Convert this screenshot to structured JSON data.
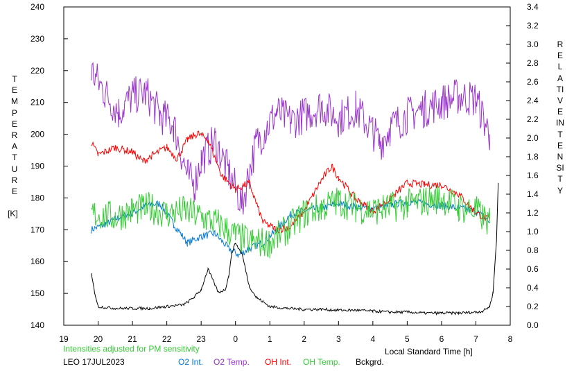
{
  "chart_data": {
    "type": "line",
    "left_axis_label": "TEMPERATURE",
    "left_axis_unit": "[K]",
    "right_axis_label": "RELATIVE INTENSITY",
    "x_label": "Local Standard Time [h]",
    "note": "Intensities adjusted for PM sensitivity",
    "station_date": "LEO 17JUL2023",
    "ylim_left": [
      140,
      240
    ],
    "ylim_right": [
      0.0,
      3.4
    ],
    "xlim": [
      19,
      32
    ],
    "y_left_ticks": [
      "240",
      "230",
      "220",
      "210",
      "200",
      "190",
      "180",
      "170",
      "160",
      "150",
      "140"
    ],
    "y_right_ticks": [
      "3.4",
      "3.2",
      "3.0",
      "2.8",
      "2.6",
      "2.4",
      "2.2",
      "2.0",
      "1.8",
      "1.6",
      "1.4",
      "1.2",
      "1.0",
      "0.8",
      "0.6",
      "0.4",
      "0.2",
      "0.0"
    ],
    "x_ticks": [
      "19",
      "20",
      "21",
      "22",
      "23",
      "0",
      "1",
      "2",
      "3",
      "4",
      "5",
      "6",
      "7",
      "8"
    ],
    "grid": false,
    "series": [
      {
        "name": "O2 Int.",
        "axis": "right",
        "color": "#0078d7",
        "noise": 0.04,
        "x": [
          19.8,
          20.2,
          20.6,
          21.0,
          21.4,
          21.8,
          22.2,
          22.6,
          23.0,
          23.4,
          23.8,
          24.1,
          24.4,
          24.8,
          25.2,
          25.6,
          26.0,
          26.5,
          27.0,
          27.5,
          28.0,
          28.5,
          29.0,
          29.5,
          30.0,
          30.5,
          31.0,
          31.4
        ],
        "y": [
          1.02,
          1.08,
          1.15,
          1.2,
          1.28,
          1.3,
          1.08,
          0.88,
          0.95,
          0.98,
          0.82,
          0.75,
          0.82,
          0.88,
          1.02,
          1.18,
          1.22,
          1.25,
          1.3,
          1.26,
          1.25,
          1.28,
          1.32,
          1.3,
          1.28,
          1.25,
          1.22,
          1.1
        ]
      },
      {
        "name": "O2 Temp.",
        "axis": "left",
        "color": "#9933cc",
        "noise": 6,
        "x": [
          19.8,
          20.2,
          20.6,
          21.0,
          21.4,
          21.8,
          22.2,
          22.6,
          22.8,
          23.0,
          23.4,
          23.8,
          24.2,
          24.4,
          24.6,
          24.9,
          25.2,
          25.6,
          26.0,
          26.5,
          27.0,
          27.5,
          28.0,
          28.2,
          28.5,
          29.0,
          29.5,
          30.0,
          30.5,
          31.0,
          31.4
        ],
        "y": [
          220,
          213,
          207,
          212,
          213,
          206,
          203,
          187,
          184,
          192,
          198,
          188,
          178,
          188,
          197,
          202,
          207,
          204,
          206,
          209,
          205,
          208,
          201,
          197,
          202,
          206,
          208,
          210,
          212,
          211,
          200
        ]
      },
      {
        "name": "OH Int.",
        "axis": "right",
        "color": "#ff0000",
        "noise": 0.04,
        "x": [
          19.8,
          20.0,
          20.5,
          21.0,
          21.3,
          21.6,
          22.0,
          22.3,
          22.6,
          22.9,
          23.2,
          23.6,
          24.0,
          24.4,
          24.8,
          25.2,
          25.6,
          26.0,
          26.5,
          26.8,
          27.0,
          27.5,
          28.0,
          28.5,
          29.0,
          29.5,
          30.0,
          30.5,
          31.0,
          31.4
        ],
        "y": [
          1.95,
          1.82,
          1.9,
          1.85,
          1.75,
          1.82,
          1.9,
          1.78,
          1.98,
          2.05,
          1.98,
          1.6,
          1.45,
          1.52,
          1.1,
          1.02,
          1.05,
          1.22,
          1.55,
          1.7,
          1.58,
          1.35,
          1.22,
          1.35,
          1.52,
          1.5,
          1.5,
          1.4,
          1.2,
          1.12
        ]
      },
      {
        "name": "OH Temp.",
        "axis": "left",
        "color": "#33cc33",
        "noise": 5,
        "x": [
          19.8,
          20.5,
          21.0,
          21.5,
          22.0,
          22.5,
          23.0,
          23.5,
          24.0,
          24.5,
          25.0,
          25.5,
          26.0,
          26.5,
          27.0,
          27.5,
          28.0,
          28.5,
          29.0,
          29.5,
          30.0,
          30.5,
          31.0,
          31.4
        ],
        "y": [
          175,
          174,
          176,
          177,
          175,
          176,
          174,
          172,
          168,
          166,
          166,
          170,
          175,
          177,
          179,
          177,
          176,
          177,
          178,
          179,
          180,
          177,
          176,
          172
        ]
      },
      {
        "name": "Bckgrd.",
        "axis": "right",
        "color": "#000000",
        "noise": 0.015,
        "x": [
          19.8,
          19.9,
          20.0,
          20.5,
          21.0,
          21.5,
          22.0,
          22.5,
          22.8,
          23.0,
          23.2,
          23.5,
          23.7,
          23.8,
          23.9,
          24.0,
          24.2,
          24.4,
          24.6,
          24.8,
          25.0,
          25.5,
          26.0,
          26.5,
          27.0,
          27.5,
          28.0,
          28.5,
          29.0,
          29.5,
          30.0,
          30.5,
          31.0,
          31.2,
          31.4,
          31.5,
          31.6,
          31.65
        ],
        "y": [
          0.55,
          0.35,
          0.2,
          0.18,
          0.18,
          0.18,
          0.2,
          0.22,
          0.3,
          0.38,
          0.6,
          0.35,
          0.38,
          0.52,
          0.78,
          0.88,
          0.75,
          0.42,
          0.3,
          0.25,
          0.2,
          0.18,
          0.17,
          0.17,
          0.16,
          0.16,
          0.15,
          0.14,
          0.14,
          0.13,
          0.13,
          0.13,
          0.14,
          0.15,
          0.2,
          0.35,
          0.9,
          1.52
        ]
      }
    ]
  }
}
